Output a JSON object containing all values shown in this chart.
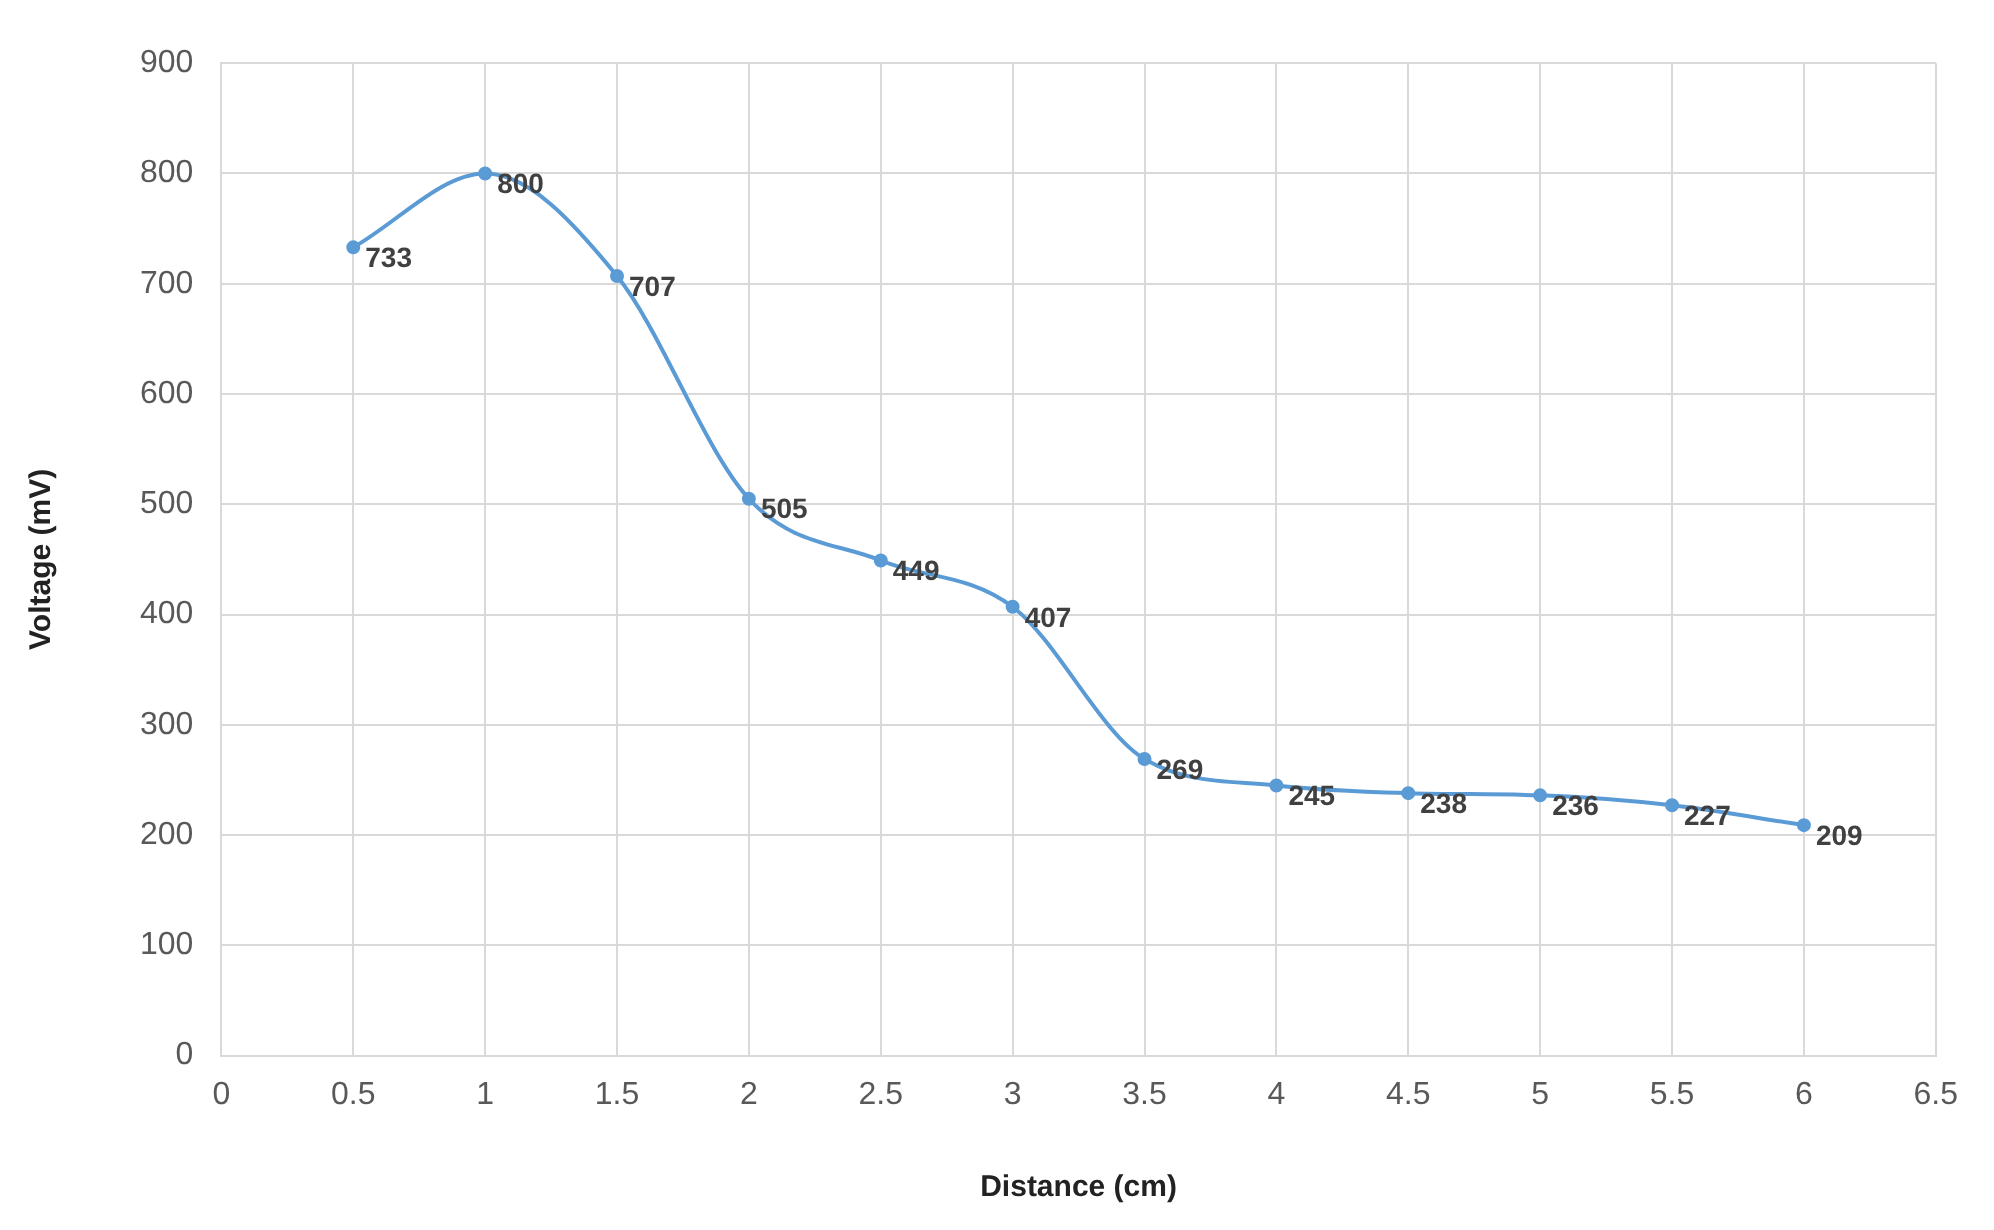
{
  "chart_data": {
    "type": "line",
    "xlabel": "Distance (cm)",
    "ylabel": "Voltage (mV)",
    "x": [
      0.5,
      1,
      1.5,
      2,
      2.5,
      3,
      3.5,
      4,
      4.5,
      5,
      5.5,
      6
    ],
    "series": [
      {
        "color": "#5b9bd5",
        "values": [
          733,
          800,
          707,
          505,
          449,
          407,
          269,
          245,
          238,
          236,
          227,
          209
        ]
      }
    ],
    "xlim": [
      0,
      6.5
    ],
    "xticks": [
      0,
      0.5,
      1,
      1.5,
      2,
      2.5,
      3,
      3.5,
      4,
      4.5,
      5,
      5.5,
      6,
      6.5
    ],
    "ylim": [
      0,
      900
    ],
    "yticks": [
      0,
      100,
      200,
      300,
      400,
      500,
      600,
      700,
      800,
      900
    ],
    "grid": true,
    "legend": false,
    "marker": "circle",
    "line_style": "solid",
    "data_labels": true
  }
}
